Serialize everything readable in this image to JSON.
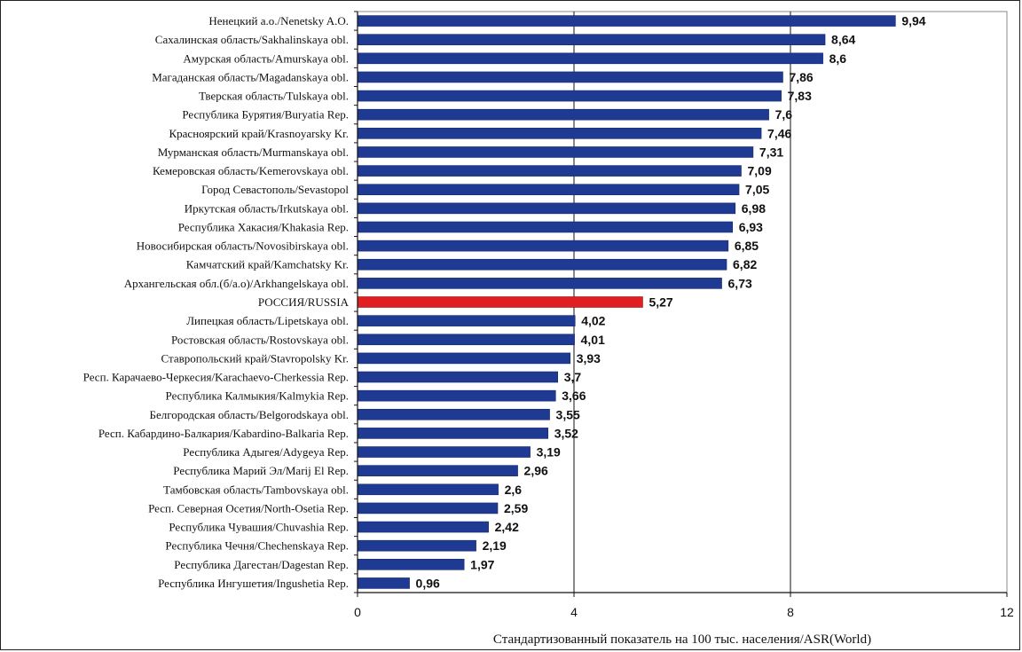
{
  "chart_data": {
    "type": "bar",
    "orientation": "horizontal",
    "title": "",
    "xlabel": "Стандартизованный показатель на 100 тыс. населения/ASR(World)",
    "ylabel": "",
    "xlim": [
      0,
      12
    ],
    "xticks": [
      0,
      4,
      8,
      12
    ],
    "xtick_labels": [
      "0",
      "4",
      "8",
      "12"
    ],
    "grid": "vertical major lines",
    "legend": "none",
    "colors": {
      "default": "#1f3a93",
      "highlight": "#e02020"
    },
    "categories": [
      "Ненецкий а.о./Nenetsky A.O.",
      "Сахалинская область/Sakhalinskaya obl.",
      "Амурская область/Amurskaya obl.",
      "Магаданская область/Magadanskaya obl.",
      "Тверская область/Tulskaya obl.",
      "Республика Бурятия/Buryatia Rep.",
      "Красноярский край/Krasnoyarsky Kr.",
      "Мурманская область/Murmanskaya obl.",
      "Кемеровская область/Kemerovskaya obl.",
      "Город Севастополь/Sevastopol",
      "Иркутская область/Irkutskaya obl.",
      "Республика Хакасия/Khakasia Rep.",
      "Новосибирская область/Novosibirskaya obl.",
      "Камчатский край/Kamchatsky Kr.",
      "Архангельская обл.(б/а.о)/Arkhangelskaya obl.",
      "РОССИЯ/RUSSIA",
      "Липецкая область/Lipetskaya obl.",
      "Ростовская область/Rostovskaya obl.",
      "Ставропольский край/Stavropolsky Kr.",
      "Респ. Карачаево-Черкесия/Karachaevo-Cherkessia Rep.",
      "Республика Калмыкия/Kalmykia Rep.",
      "Белгородская область/Belgorodskaya obl.",
      "Респ. Кабардино-Балкария/Kabardino-Balkaria Rep.",
      "Республика Адыгея/Adygeya Rep.",
      "Республика Марий Эл/Marij El Rep.",
      "Тамбовская область/Tambovskaya obl.",
      "Респ. Северная Осетия/North-Osetia Rep.",
      "Республика Чувашия/Chuvashia Rep.",
      "Республика Чечня/Chechenskaya Rep.",
      "Республика Дагестан/Dagestan Rep.",
      "Республика Ингушетия/Ingushetia Rep."
    ],
    "values": [
      9.94,
      8.64,
      8.6,
      7.86,
      7.83,
      7.6,
      7.46,
      7.31,
      7.09,
      7.05,
      6.98,
      6.93,
      6.85,
      6.82,
      6.73,
      5.27,
      4.02,
      4.01,
      3.93,
      3.7,
      3.66,
      3.55,
      3.52,
      3.19,
      2.96,
      2.6,
      2.59,
      2.42,
      2.19,
      1.97,
      0.96
    ],
    "value_labels": [
      "9,94",
      "8,64",
      "8,6",
      "7,86",
      "7,83",
      "7,6",
      "7,46",
      "7,31",
      "7,09",
      "7,05",
      "6,98",
      "6,93",
      "6,85",
      "6,82",
      "6,73",
      "5,27",
      "4,02",
      "4,01",
      "3,93",
      "3,7",
      "3,66",
      "3,55",
      "3,52",
      "3,19",
      "2,96",
      "2,6",
      "2,59",
      "2,42",
      "2,19",
      "1,97",
      "0,96"
    ],
    "highlight_index": 15
  }
}
